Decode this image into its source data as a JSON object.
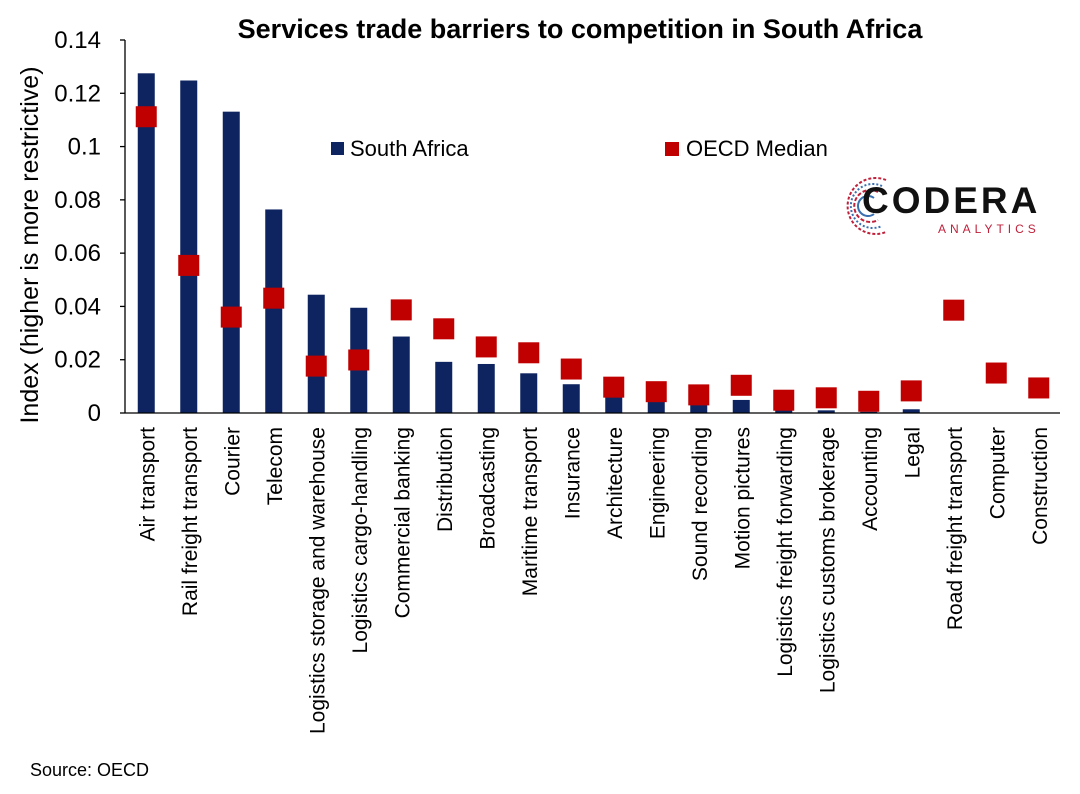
{
  "chart_data": {
    "type": "bar",
    "title": "Services trade barriers to competition in South Africa",
    "ylabel": "Index (higher is more restrictive)",
    "xlabel": "",
    "ylim": [
      0,
      0.14
    ],
    "yticks": [
      0,
      0.02,
      0.04,
      0.06,
      0.08,
      0.1,
      0.12,
      0.14
    ],
    "ytick_labels": [
      "0",
      "0.02",
      "0.04",
      "0.06",
      "0.08",
      "0.1",
      "0.12",
      "0.14"
    ],
    "grid": false,
    "legend_position": "top",
    "categories": [
      "Air transport",
      "Rail freight transport",
      "Courier",
      "Telecom",
      "Logistics storage and warehouse",
      "Logistics cargo-handling",
      "Commercial banking",
      "Distribution",
      "Broadcasting",
      "Maritime transport",
      "Insurance",
      "Architecture",
      "Engineering",
      "Sound recording",
      "Motion pictures",
      "Logistics freight forwarding",
      "Logistics customs brokerage",
      "Accounting",
      "Legal",
      "Road freight transport",
      "Computer",
      "Construction"
    ],
    "series": [
      {
        "name": "South Africa",
        "kind": "bar",
        "color": "#0d2461",
        "values": [
          0.1275,
          0.1248,
          0.1131,
          0.0764,
          0.0444,
          0.0395,
          0.0287,
          0.0192,
          0.0184,
          0.0149,
          0.0108,
          0.006,
          0.0042,
          0.0034,
          0.0049,
          0.0016,
          0.001,
          0.0005,
          0.0014,
          0.0,
          0.0,
          0.0
        ]
      },
      {
        "name": "OECD Median",
        "kind": "marker",
        "color": "#c00000",
        "values": [
          0.1112,
          0.0554,
          0.036,
          0.0431,
          0.0176,
          0.0199,
          0.0387,
          0.0316,
          0.0248,
          0.0226,
          0.0165,
          0.0097,
          0.008,
          0.0068,
          0.0104,
          0.0048,
          0.0057,
          0.0044,
          0.0083,
          0.0386,
          0.015,
          0.0094
        ]
      }
    ]
  },
  "source_text": "Source: OECD",
  "logo": {
    "word": "CODERA",
    "sub": "ANALYTICS",
    "accent_color": "#c0203a"
  }
}
